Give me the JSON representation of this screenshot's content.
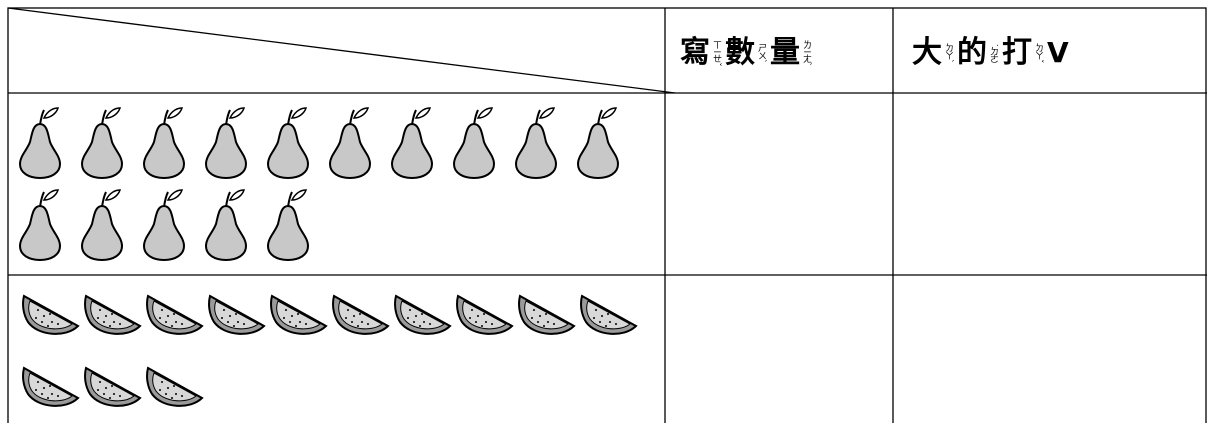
{
  "table": {
    "header": [
      [
        {
          "char": "寫",
          "zhuyin": "ㄒㄧㄝˇ"
        },
        {
          "char": "數",
          "zhuyin": "ㄕㄨˋ"
        },
        {
          "char": "量",
          "zhuyin": "ㄌㄧㄤˋ"
        }
      ],
      [
        {
          "char": "大",
          "zhuyin": "ㄉㄚˋ"
        },
        {
          "char": "的",
          "zhuyin": "˙ㄉㄜ"
        },
        {
          "char": "打",
          "zhuyin": "ㄉㄚˇ"
        },
        {
          "char": "V"
        }
      ]
    ]
  }
}
